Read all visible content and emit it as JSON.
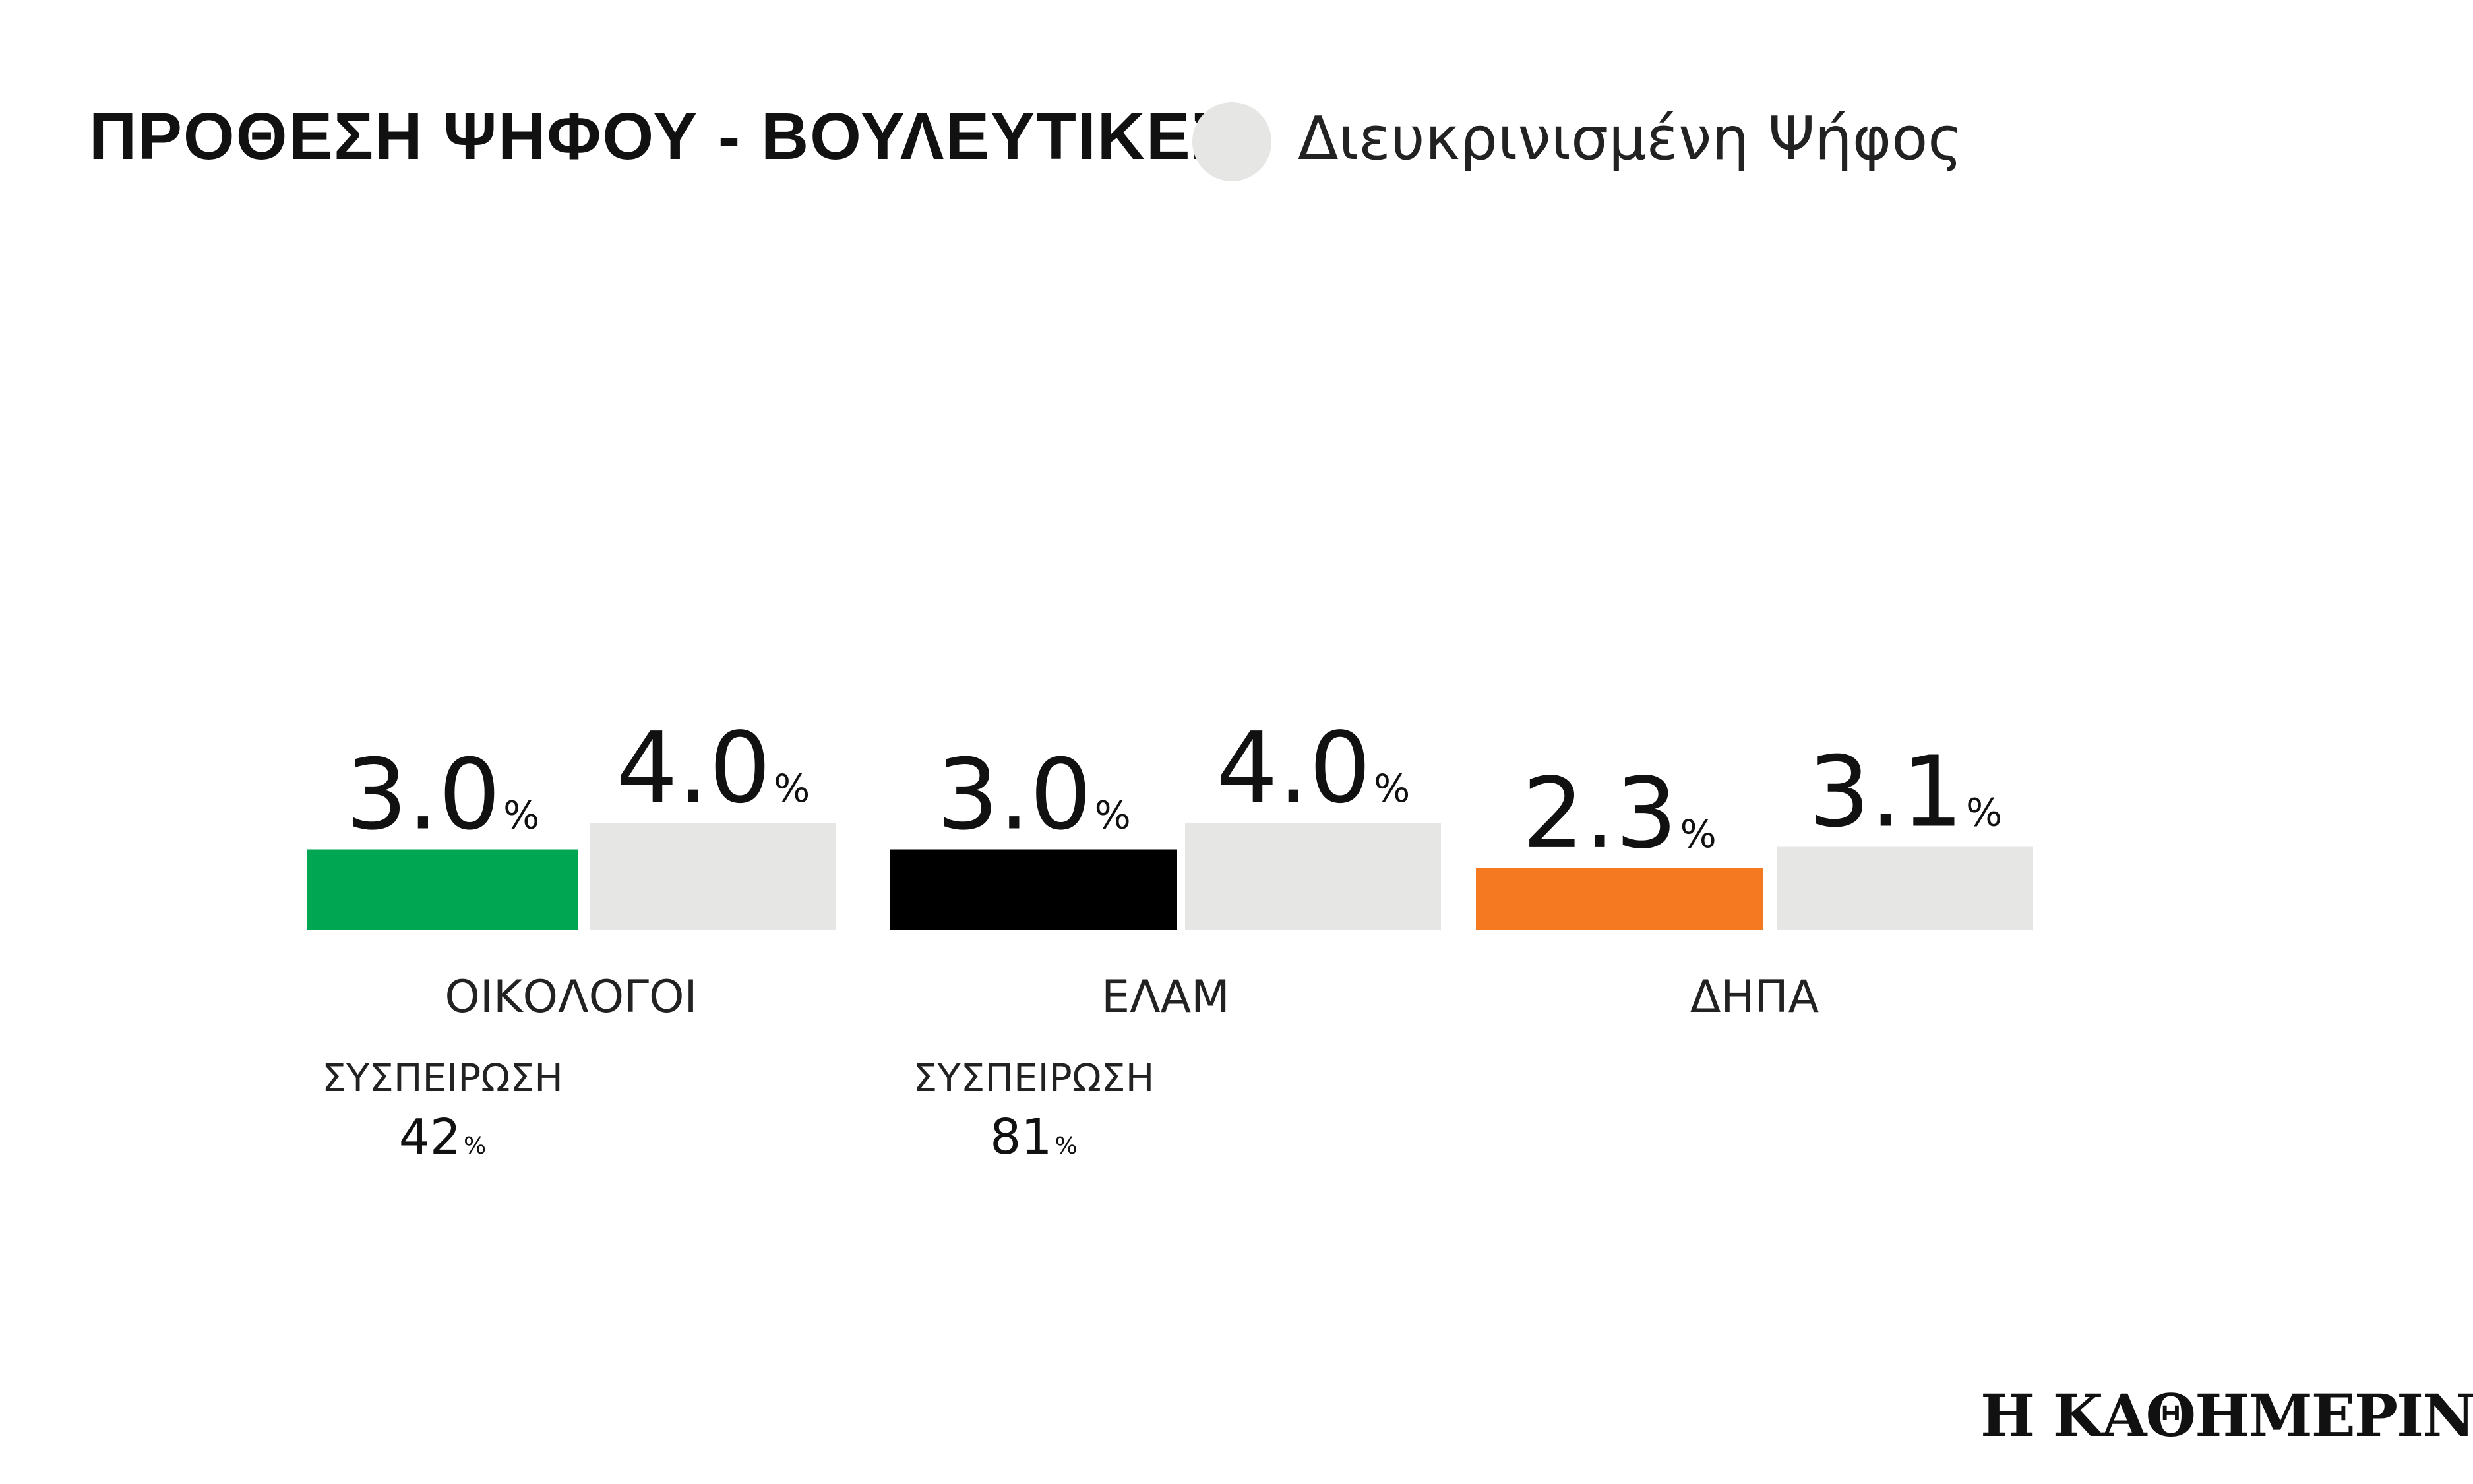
{
  "header": {
    "title": "ΠΡΟΘΕΣΗ ΨΗΦΟΥ - ΒΟΥΛΕΥΤΙΚΕΣ",
    "legend_label": "Διευκρινισμένη Ψήφος",
    "legend_color": "#e6e6e4"
  },
  "chart_data": {
    "type": "bar",
    "categories": [
      "ΟΙΚΟΛΟΓΟΙ",
      "ΕΛΑΜ",
      "ΔΗΠΑ"
    ],
    "series": [
      {
        "values": [
          3.0,
          3.0,
          2.3
        ],
        "colors": [
          "#00a651",
          "#000000",
          "#f47920"
        ]
      },
      {
        "name": "Διευκρινισμένη Ψήφος",
        "values": [
          4.0,
          4.0,
          3.1
        ],
        "color": "#e6e6e4"
      }
    ],
    "value_suffix": "%",
    "value_labels": [
      [
        "3.0",
        "3.0",
        "2.3"
      ],
      [
        "4.0",
        "4.0",
        "3.1"
      ]
    ],
    "cohesion": {
      "label": "ΣΥΣΠΕΙΡΩΣΗ",
      "values": [
        42,
        81,
        null
      ]
    },
    "title": "ΠΡΟΘΕΣΗ ΨΗΦΟΥ - ΒΟΥΛΕΥΤΙΚΕΣ",
    "xlabel": "",
    "ylabel": "",
    "grid": false,
    "legend": "top"
  },
  "footer": {
    "logo_text": "Η ΚΑΘΗΜΕΡΙΝΗ"
  }
}
